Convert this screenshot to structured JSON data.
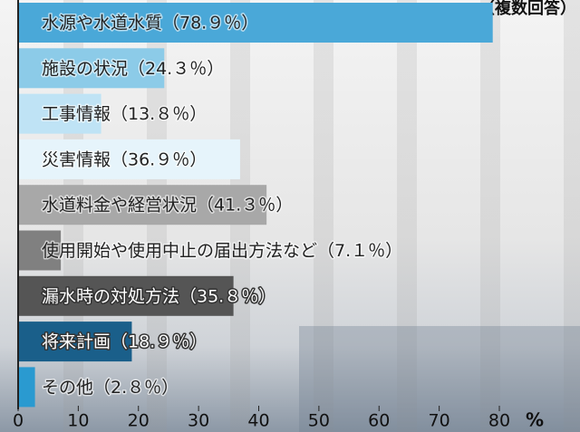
{
  "chart_data": {
    "type": "bar",
    "orientation": "horizontal",
    "subtitle": "（複数回答）",
    "x_label": "%",
    "categories": [
      "水源や水道水質（78.９％）",
      "施設の状況（24.３％）",
      "工事情報（13.８％）",
      "災害情報（36.９％）",
      "水道料金や経営状況（41.３％）",
      "使用開始や使用中止の届出方法など（7.１％）",
      "漏水時の対処方法（35.８％）",
      "将来計画（18.９％）",
      "その他（2.８％）"
    ],
    "values": [
      78.9,
      24.3,
      13.8,
      36.9,
      41.3,
      7.1,
      35.8,
      18.9,
      2.8
    ],
    "colors": [
      "#4aa8d8",
      "#8ccbe8",
      "#bfe3f5",
      "#e6f4fb",
      "#a8a8a8",
      "#808080",
      "#555555",
      "#1a5f8a",
      "#2a9ad0"
    ],
    "xlim": [
      0,
      80
    ],
    "xticks": [
      0,
      10,
      20,
      30,
      40,
      50,
      60,
      70,
      80
    ]
  }
}
